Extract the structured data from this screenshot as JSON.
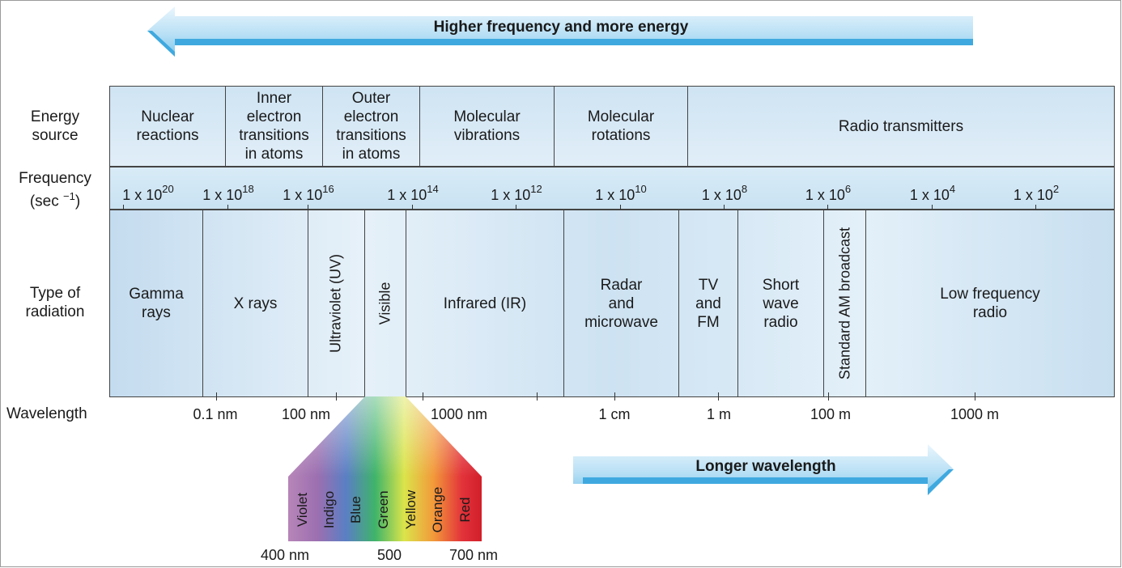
{
  "arrows": {
    "top": "Higher frequency and more energy",
    "bottom": "Longer wavelength"
  },
  "row_labels": {
    "energy_source": "Energy\nsource",
    "frequency_main": "Frequency",
    "frequency_unit": "(sec",
    "frequency_exp": "−1",
    "frequency_close": ")",
    "radiation": "Type of\nradiation",
    "wavelength": "Wavelength"
  },
  "energy_sources": [
    "Nuclear\nreactions",
    "Inner\nelectron\ntransitions\nin atoms",
    "Outer\nelectron\ntransitions\nin atoms",
    "Molecular\nvibrations",
    "Molecular\nrotations",
    "Radio transmitters"
  ],
  "frequencies": [
    {
      "base": "1 x 10",
      "exp": "20"
    },
    {
      "base": "1 x 10",
      "exp": "18"
    },
    {
      "base": "1 x 10",
      "exp": "16"
    },
    {
      "base": "1 x 10",
      "exp": "14"
    },
    {
      "base": "1 x 10",
      "exp": "12"
    },
    {
      "base": "1 x 10",
      "exp": "10"
    },
    {
      "base": "1 x 10",
      "exp": "8"
    },
    {
      "base": "1 x 10",
      "exp": "6"
    },
    {
      "base": "1 x 10",
      "exp": "4"
    },
    {
      "base": "1 x 10",
      "exp": "2"
    }
  ],
  "radiation_types": {
    "gamma": "Gamma\nrays",
    "xrays": "X rays",
    "uv": "Ultraviolet (UV)",
    "visible": "Visible",
    "ir": "Infrared (IR)",
    "radar": "Radar\nand\nmicrowave",
    "tvfm": "TV\nand\nFM",
    "shortwave": "Short\nwave\nradio",
    "am": "Standard AM broadcast",
    "lowfreq": "Low frequency\nradio"
  },
  "wavelengths": [
    "0.1 nm",
    "100 nm",
    "1000 nm",
    "1 cm",
    "1 m",
    "100 m",
    "1000 m"
  ],
  "visible_colors": [
    "Violet",
    "Indigo",
    "Blue",
    "Green",
    "Yellow",
    "Orange",
    "Red"
  ],
  "visible_scale": [
    "400 nm",
    "500",
    "700 nm"
  ],
  "colors": {
    "band_fill": "#d6e8f5",
    "arrow": "#5fb8e6",
    "arrow_light": "#cde9f8"
  }
}
